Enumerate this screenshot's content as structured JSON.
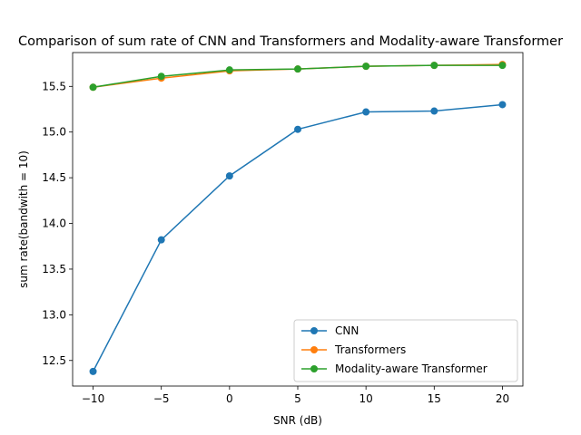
{
  "chart_data": {
    "type": "line",
    "title": "Comparison of sum rate of CNN and Transformers and Modality-aware Transformer",
    "xlabel": "SNR (dB)",
    "ylabel": "sum rate(bandwith = 10)",
    "x": [
      -10,
      -5,
      0,
      5,
      10,
      15,
      20
    ],
    "xlim": [
      -11.5,
      21.5
    ],
    "ylim": [
      12.22,
      15.87
    ],
    "xticks": [
      -10,
      -5,
      0,
      5,
      10,
      15,
      20
    ],
    "xtick_labels": [
      "−10",
      "−5",
      "0",
      "5",
      "10",
      "15",
      "20"
    ],
    "yticks": [
      12.5,
      13.0,
      13.5,
      14.0,
      14.5,
      15.0,
      15.5
    ],
    "ytick_labels": [
      "12.5",
      "13.0",
      "13.5",
      "14.0",
      "14.5",
      "15.0",
      "15.5"
    ],
    "grid": false,
    "legend_position": "lower-right",
    "series": [
      {
        "name": "CNN",
        "color": "#1f77b4",
        "values": [
          12.38,
          13.82,
          14.52,
          15.03,
          15.22,
          15.23,
          15.3
        ]
      },
      {
        "name": "Transformers",
        "color": "#ff7f0e",
        "values": [
          15.49,
          15.59,
          15.67,
          15.69,
          15.72,
          15.73,
          15.74
        ]
      },
      {
        "name": "Modality-aware Transformer",
        "color": "#2ca02c",
        "values": [
          15.49,
          15.61,
          15.68,
          15.69,
          15.72,
          15.73,
          15.73
        ]
      }
    ]
  }
}
